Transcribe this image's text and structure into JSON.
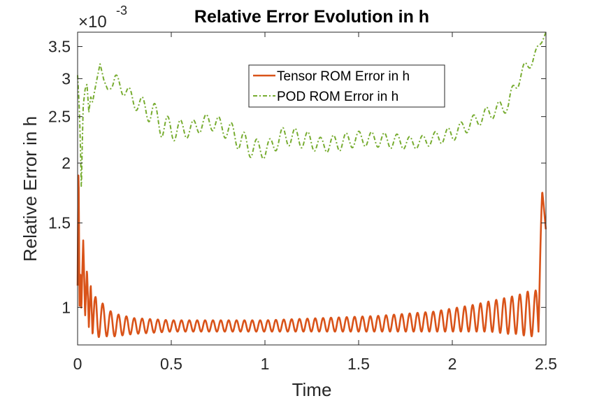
{
  "chart_data": {
    "type": "line",
    "title": "Relative Error Evolution in h",
    "xlabel": "Time",
    "ylabel": "Relative Error in h",
    "yscale": "log",
    "multiplier": {
      "prefix": "×10",
      "exponent": "-3"
    },
    "xlim": [
      0,
      2.5
    ],
    "ylim": [
      0.000835,
      0.00375
    ],
    "x_ticks": [
      {
        "value": 0,
        "label": "0"
      },
      {
        "value": 0.5,
        "label": "0.5"
      },
      {
        "value": 1,
        "label": "1"
      },
      {
        "value": 1.5,
        "label": "1.5"
      },
      {
        "value": 2,
        "label": "2"
      },
      {
        "value": 2.5,
        "label": "2.5"
      }
    ],
    "y_ticks": [
      {
        "value": 0.001,
        "label": "1"
      },
      {
        "value": 0.0015,
        "label": "1.5"
      },
      {
        "value": 0.002,
        "label": "2"
      },
      {
        "value": 0.0025,
        "label": "2.5"
      },
      {
        "value": 0.003,
        "label": "3"
      },
      {
        "value": 0.0035,
        "label": "3.5"
      }
    ],
    "grid": false,
    "legend_position": "top-right",
    "series": [
      {
        "name": "Tensor ROM Error in h",
        "color": "#D95319",
        "style": "solid",
        "x": [
          0,
          0.005,
          0.01,
          0.015,
          0.02,
          0.03,
          0.04,
          0.05,
          0.06,
          0.07,
          0.08,
          0.09,
          0.1,
          0.12,
          0.14,
          0.16,
          0.2,
          0.3,
          0.5,
          0.8,
          1.0,
          1.3,
          1.6,
          1.9,
          2.1,
          2.2,
          2.3,
          2.35,
          2.4,
          2.43,
          2.46,
          2.48,
          2.5
        ],
        "y": [
          0.00111,
          0.00197,
          0.00099,
          0.00117,
          0.00098,
          0.00138,
          0.00095,
          0.0012,
          0.00091,
          0.00112,
          0.00087,
          0.00103,
          0.0009,
          0.00102,
          0.00094,
          0.00098,
          0.00096,
          0.00093,
          0.00092,
          0.00092,
          0.00092,
          0.00093,
          0.00094,
          0.00095,
          0.00097,
          0.00099,
          0.00101,
          0.00102,
          0.00103,
          0.00102,
          0.00106,
          0.00175,
          0.00144
        ],
        "envelope_low": [
          0.00111,
          0.00197,
          0.00099,
          0.00117,
          0.00098,
          0.00138,
          0.00095,
          0.0012,
          0.00091,
          0.00112,
          0.00087,
          0.00103,
          0.00086,
          0.00087,
          0.00087,
          0.00087,
          0.00087,
          0.00088,
          0.00089,
          0.00089,
          0.00089,
          0.00089,
          0.00089,
          0.00089,
          0.00089,
          0.00089,
          0.00088,
          0.00088,
          0.00087,
          0.00087,
          0.00085,
          0.00175,
          0.00144
        ],
        "envelope_high": [
          0.00111,
          0.00197,
          0.00099,
          0.00117,
          0.00098,
          0.00138,
          0.00095,
          0.0012,
          0.00091,
          0.00112,
          0.00087,
          0.00103,
          0.00108,
          0.00104,
          0.00101,
          0.00099,
          0.00097,
          0.00095,
          0.00094,
          0.00094,
          0.00094,
          0.00095,
          0.00096,
          0.00098,
          0.00101,
          0.00103,
          0.00105,
          0.00106,
          0.00108,
          0.00107,
          0.0011,
          0.00175,
          0.00144
        ]
      },
      {
        "name": "POD ROM Error in h",
        "color": "#77AC30",
        "style": "dash-dot",
        "x": [
          0,
          0.01,
          0.02,
          0.03,
          0.04,
          0.05,
          0.06,
          0.07,
          0.08,
          0.1,
          0.12,
          0.14,
          0.16,
          0.2,
          0.25,
          0.3,
          0.35,
          0.4,
          0.45,
          0.5,
          0.6,
          0.7,
          0.8,
          0.9,
          1.0,
          1.1,
          1.2,
          1.3,
          1.4,
          1.5,
          1.6,
          1.7,
          1.8,
          1.9,
          2.0,
          2.1,
          2.2,
          2.3,
          2.35,
          2.4,
          2.45,
          2.5
        ],
        "y": [
          0.00305,
          0.00255,
          0.00175,
          0.00263,
          0.00285,
          0.00292,
          0.00255,
          0.00275,
          0.00268,
          0.00295,
          0.00322,
          0.00298,
          0.00285,
          0.00297,
          0.00285,
          0.0027,
          0.00262,
          0.00255,
          0.0024,
          0.00235,
          0.00235,
          0.00245,
          0.00235,
          0.00218,
          0.00212,
          0.00228,
          0.00225,
          0.00218,
          0.00221,
          0.00225,
          0.00224,
          0.00222,
          0.0022,
          0.00225,
          0.0023,
          0.00242,
          0.00255,
          0.00265,
          0.003,
          0.00318,
          0.0034,
          0.00375
        ],
        "envelope_low": [
          0.00305,
          0.00255,
          0.00175,
          0.00263,
          0.00285,
          0.00292,
          0.00255,
          0.00275,
          0.00268,
          0.00295,
          0.00322,
          0.00298,
          0.00285,
          0.00287,
          0.00275,
          0.0026,
          0.0025,
          0.0024,
          0.00226,
          0.00222,
          0.00226,
          0.00236,
          0.00224,
          0.00206,
          0.00204,
          0.00218,
          0.00215,
          0.0021,
          0.00212,
          0.00217,
          0.00216,
          0.00214,
          0.00214,
          0.00218,
          0.00222,
          0.00234,
          0.00246,
          0.00256,
          0.00288,
          0.00308,
          0.00332,
          0.00375
        ],
        "envelope_high": [
          0.00305,
          0.00255,
          0.00175,
          0.00263,
          0.00285,
          0.00292,
          0.00255,
          0.00275,
          0.00268,
          0.00295,
          0.00322,
          0.00298,
          0.00285,
          0.00307,
          0.00295,
          0.0028,
          0.00274,
          0.0027,
          0.00254,
          0.00248,
          0.00244,
          0.00254,
          0.00246,
          0.0023,
          0.0022,
          0.00238,
          0.00235,
          0.00226,
          0.0023,
          0.00233,
          0.00232,
          0.0023,
          0.00226,
          0.00232,
          0.00238,
          0.0025,
          0.00264,
          0.00274,
          0.00312,
          0.00328,
          0.00348,
          0.00375
        ]
      }
    ]
  }
}
